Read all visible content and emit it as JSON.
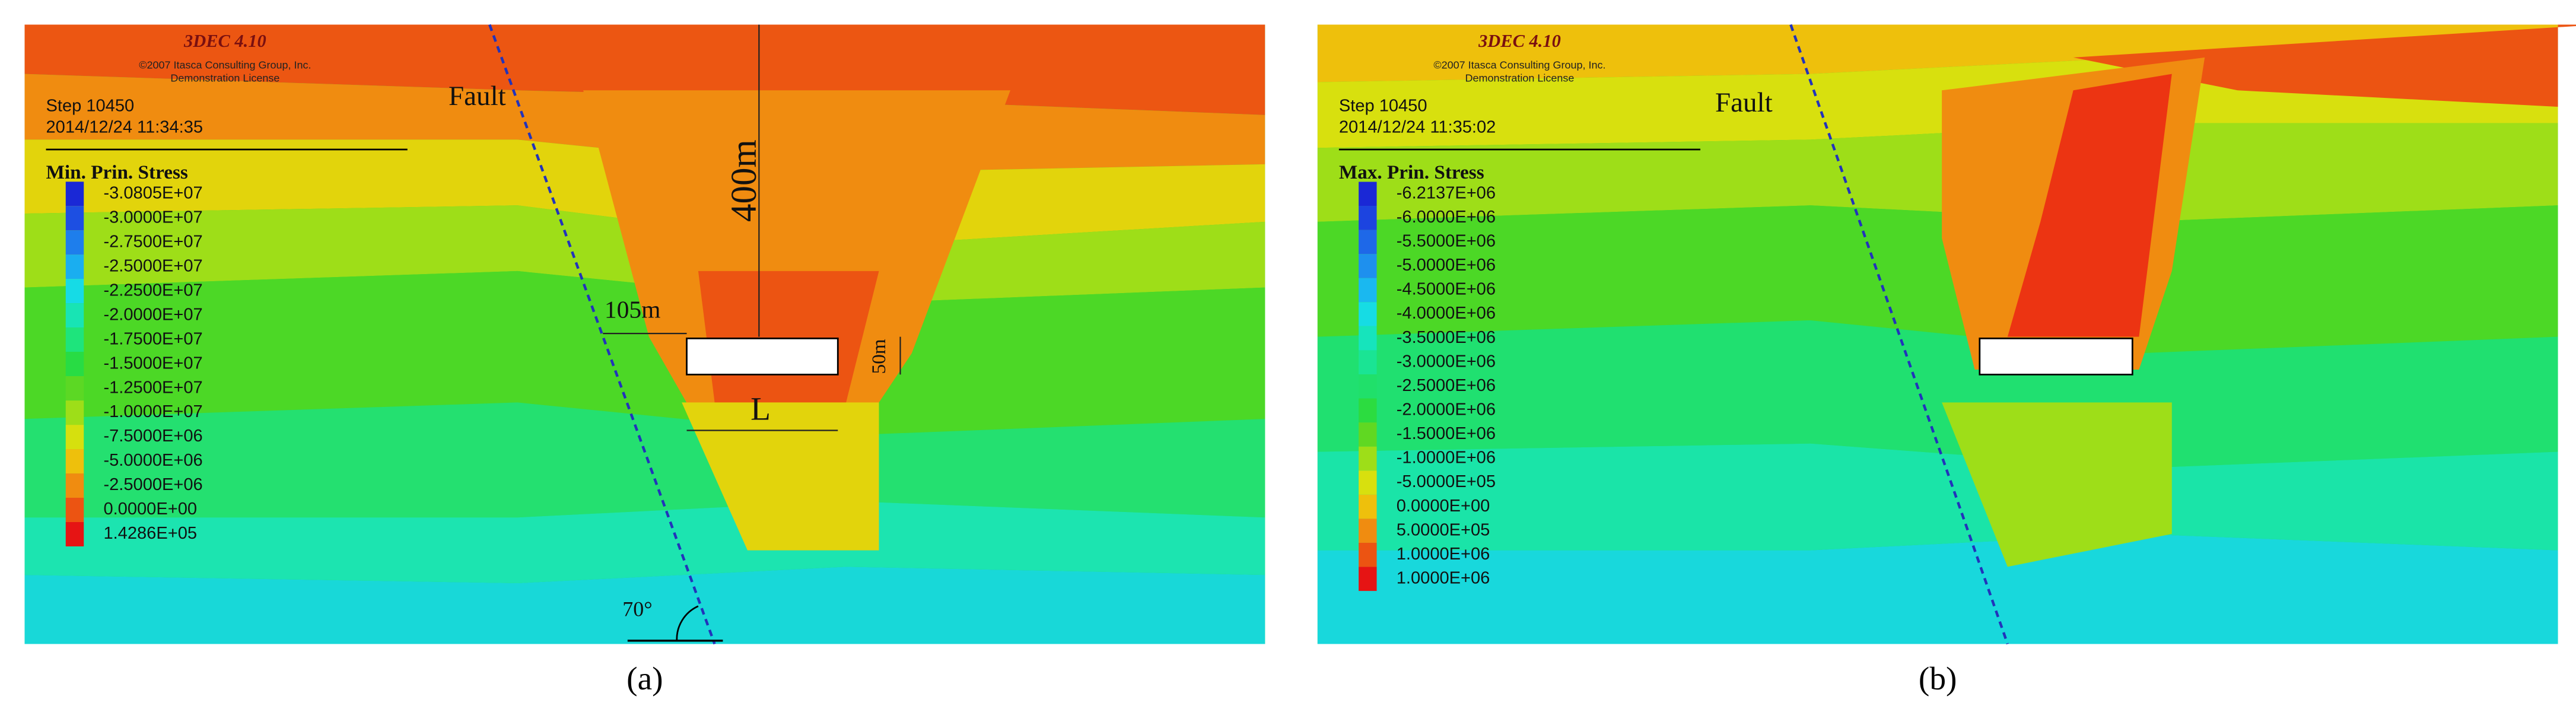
{
  "panels": [
    {
      "header": {
        "software": "3DEC 4.10",
        "copyright": "©2007 Itasca Consulting Group, Inc.",
        "license": "Demonstration License",
        "step": "Step 10450",
        "datetime": "2014/12/24 11:34:35"
      },
      "legend": {
        "title": "Min. Prin. Stress",
        "entries": [
          {
            "label": "-3.0805E+07",
            "color": "#1a28d6"
          },
          {
            "label": "-3.0000E+07",
            "color": "#1d4fe2"
          },
          {
            "label": "-2.7500E+07",
            "color": "#1e7eec"
          },
          {
            "label": "-2.5000E+07",
            "color": "#1aaef0"
          },
          {
            "label": "-2.2500E+07",
            "color": "#16dbe6"
          },
          {
            "label": "-2.0000E+07",
            "color": "#18e4b4"
          },
          {
            "label": "-1.7500E+07",
            "color": "#1ee47c"
          },
          {
            "label": "-1.5000E+07",
            "color": "#28dc44"
          },
          {
            "label": "-1.2500E+07",
            "color": "#5cd824"
          },
          {
            "label": "-1.0000E+07",
            "color": "#9ede18"
          },
          {
            "label": "-7.5000E+06",
            "color": "#d6e00e"
          },
          {
            "label": "-5.0000E+06",
            "color": "#eec00c"
          },
          {
            "label": "-2.5000E+06",
            "color": "#f08c10"
          },
          {
            "label": "0.0000E+00",
            "color": "#ec5412"
          },
          {
            "label": "1.4286E+05",
            "color": "#e61414"
          }
        ]
      },
      "annotations": {
        "fault": "Fault",
        "depth": "400m",
        "width": "105m",
        "height": "50m",
        "length": "L",
        "angle": "70°"
      },
      "caption": "(a)"
    },
    {
      "header": {
        "software": "3DEC 4.10",
        "copyright": "©2007 Itasca Consulting Group, Inc.",
        "license": "Demonstration License",
        "step": "Step 10450",
        "datetime": "2014/12/24 11:35:02"
      },
      "legend": {
        "title": "Max. Prin. Stress",
        "entries": [
          {
            "label": "-6.2137E+06",
            "color": "#1a28d6"
          },
          {
            "label": "-6.0000E+06",
            "color": "#1c44e0"
          },
          {
            "label": "-5.5000E+06",
            "color": "#1e68e8"
          },
          {
            "label": "-5.0000E+06",
            "color": "#1e90ee"
          },
          {
            "label": "-4.5000E+06",
            "color": "#1ab8f0"
          },
          {
            "label": "-4.0000E+06",
            "color": "#16dce4"
          },
          {
            "label": "-3.5000E+06",
            "color": "#16e4bc"
          },
          {
            "label": "-3.0000E+06",
            "color": "#1ae494"
          },
          {
            "label": "-2.5000E+06",
            "color": "#20e06a"
          },
          {
            "label": "-2.0000E+06",
            "color": "#2cdc40"
          },
          {
            "label": "-1.5000E+06",
            "color": "#60d822"
          },
          {
            "label": "-1.0000E+06",
            "color": "#9ede18"
          },
          {
            "label": "-5.0000E+05",
            "color": "#d8e00e"
          },
          {
            "label": "0.0000E+00",
            "color": "#eec00c"
          },
          {
            "label": "5.0000E+05",
            "color": "#f08c10"
          },
          {
            "label": "1.0000E+06",
            "color": "#ec5412"
          },
          {
            "label": "1.0000E+06",
            "color": "#e61414"
          }
        ]
      },
      "annotations": {
        "fault": "Fault"
      },
      "caption": "(b)"
    }
  ]
}
